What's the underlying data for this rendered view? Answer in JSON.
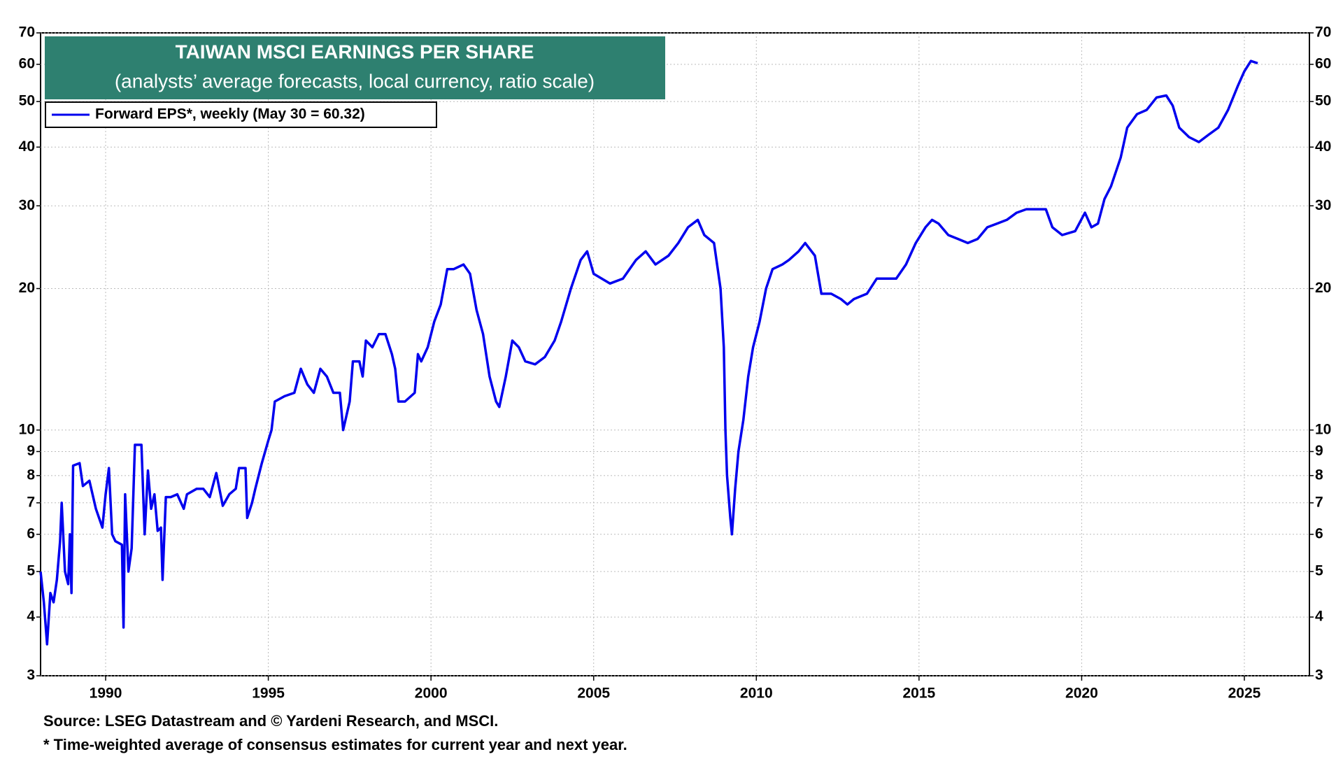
{
  "chart_data": {
    "type": "line",
    "title": "TAIWAN MSCI EARNINGS PER SHARE",
    "subtitle": "(analysts’ average forecasts, local currency, ratio scale)",
    "source": "Source: LSEG Datastream and © Yardeni Research, and MSCI.",
    "note": "* Time-weighted average of consensus estimates for current year and next year.",
    "log_scale": true,
    "grid": true,
    "legend": "upper left",
    "xlim": [
      1988,
      2027
    ],
    "xticks": [
      1990,
      1995,
      2000,
      2005,
      2010,
      2015,
      2020,
      2025
    ],
    "ylim": [
      3,
      70
    ],
    "yticks": [
      3,
      4,
      5,
      6,
      7,
      8,
      9,
      10,
      20,
      30,
      40,
      50,
      60,
      70
    ],
    "y2lim": [
      3,
      70
    ],
    "y2ticks": [
      3,
      4,
      5,
      6,
      7,
      8,
      9,
      10,
      20,
      30,
      40,
      50,
      60,
      70
    ],
    "x": [
      1988.0,
      1988.1,
      1988.2,
      1988.3,
      1988.4,
      1988.5,
      1988.6,
      1988.65,
      1988.75,
      1988.85,
      1988.9,
      1988.95,
      1989.0,
      1989.2,
      1989.3,
      1989.5,
      1989.7,
      1989.9,
      1990.0,
      1990.1,
      1990.2,
      1990.3,
      1990.5,
      1990.55,
      1990.6,
      1990.7,
      1990.8,
      1990.9,
      1991.1,
      1991.2,
      1991.3,
      1991.4,
      1991.5,
      1991.6,
      1991.7,
      1991.75,
      1991.85,
      1992.0,
      1992.2,
      1992.4,
      1992.5,
      1992.8,
      1993.0,
      1993.2,
      1993.4,
      1993.6,
      1993.8,
      1994.0,
      1994.1,
      1994.3,
      1994.35,
      1994.5,
      1994.6,
      1994.8,
      1995.0,
      1995.1,
      1995.2,
      1995.5,
      1995.8,
      1996.0,
      1996.2,
      1996.4,
      1996.6,
      1996.8,
      1997.0,
      1997.2,
      1997.3,
      1997.5,
      1997.6,
      1997.8,
      1997.9,
      1998.0,
      1998.2,
      1998.4,
      1998.6,
      1998.8,
      1998.9,
      1999.0,
      1999.2,
      1999.5,
      1999.6,
      1999.7,
      1999.9,
      2000.1,
      2000.3,
      2000.5,
      2000.7,
      2001.0,
      2001.2,
      2001.4,
      2001.6,
      2001.8,
      2002.0,
      2002.1,
      2002.3,
      2002.5,
      2002.7,
      2002.9,
      2003.2,
      2003.5,
      2003.8,
      2004.0,
      2004.3,
      2004.6,
      2004.8,
      2005.0,
      2005.5,
      2005.9,
      2006.3,
      2006.6,
      2006.9,
      2007.3,
      2007.6,
      2007.9,
      2008.2,
      2008.4,
      2008.7,
      2008.9,
      2009.0,
      2009.05,
      2009.1,
      2009.2,
      2009.25,
      2009.35,
      2009.45,
      2009.6,
      2009.75,
      2009.9,
      2010.1,
      2010.3,
      2010.5,
      2010.8,
      2011.0,
      2011.3,
      2011.5,
      2011.8,
      2012.0,
      2012.3,
      2012.6,
      2012.8,
      2013.0,
      2013.4,
      2013.7,
      2014.0,
      2014.3,
      2014.6,
      2014.9,
      2015.2,
      2015.4,
      2015.6,
      2015.9,
      2016.2,
      2016.5,
      2016.8,
      2017.1,
      2017.4,
      2017.7,
      2018.0,
      2018.3,
      2018.6,
      2018.9,
      2019.1,
      2019.4,
      2019.8,
      2020.1,
      2020.3,
      2020.5,
      2020.7,
      2020.9,
      2021.2,
      2021.4,
      2021.7,
      2022.0,
      2022.3,
      2022.6,
      2022.8,
      2023.0,
      2023.3,
      2023.6,
      2023.9,
      2024.2,
      2024.5,
      2024.8,
      2025.0,
      2025.2,
      2025.41
    ],
    "series": [
      {
        "name": "Forward EPS*, weekly (May 30 = 60.32)",
        "color": "#0000ee",
        "values": [
          5.0,
          4.3,
          3.5,
          4.5,
          4.3,
          4.8,
          5.8,
          7.0,
          5.0,
          4.7,
          6.0,
          4.5,
          8.4,
          8.5,
          7.6,
          7.8,
          6.8,
          6.2,
          7.3,
          8.3,
          6.0,
          5.8,
          5.7,
          3.8,
          7.3,
          5.0,
          5.6,
          9.3,
          9.3,
          6.0,
          8.2,
          6.8,
          7.3,
          6.1,
          6.2,
          4.8,
          7.2,
          7.2,
          7.3,
          6.8,
          7.3,
          7.5,
          7.5,
          7.2,
          8.1,
          6.9,
          7.3,
          7.5,
          8.3,
          8.3,
          6.5,
          7.0,
          7.5,
          8.5,
          9.5,
          10.0,
          11.5,
          11.8,
          12.0,
          13.5,
          12.5,
          12.0,
          13.5,
          13.0,
          12.0,
          12.0,
          10.0,
          11.5,
          14.0,
          14.0,
          13.0,
          15.5,
          15.0,
          16.0,
          16.0,
          14.5,
          13.5,
          11.5,
          11.5,
          12.0,
          14.5,
          14.0,
          15.0,
          17.0,
          18.5,
          22.0,
          22.0,
          22.5,
          21.5,
          18.0,
          16.0,
          13.0,
          11.5,
          11.2,
          13.0,
          15.5,
          15.0,
          14.0,
          13.8,
          14.3,
          15.5,
          17.0,
          20.0,
          23.0,
          24.0,
          21.5,
          20.5,
          21.0,
          23.0,
          24.0,
          22.5,
          23.5,
          25.0,
          27.0,
          28.0,
          26.0,
          25.0,
          20.0,
          15.0,
          10.0,
          8.0,
          6.5,
          6.0,
          7.5,
          9.0,
          10.5,
          13.0,
          15.0,
          17.0,
          20.0,
          22.0,
          22.5,
          23.0,
          24.0,
          25.0,
          23.5,
          19.5,
          19.5,
          19.0,
          18.5,
          19.0,
          19.5,
          21.0,
          21.0,
          21.0,
          22.5,
          25.0,
          27.0,
          28.0,
          27.5,
          26.0,
          25.5,
          25.0,
          25.5,
          27.0,
          27.5,
          28.0,
          29.0,
          29.5,
          29.5,
          29.5,
          27.0,
          26.0,
          26.5,
          29.0,
          27.0,
          27.5,
          31.0,
          33.0,
          38.0,
          44.0,
          47.0,
          48.0,
          51.0,
          51.5,
          49.0,
          44.0,
          42.0,
          41.0,
          42.5,
          44.0,
          48.0,
          54.0,
          58.0,
          61.0,
          60.32
        ]
      }
    ]
  }
}
